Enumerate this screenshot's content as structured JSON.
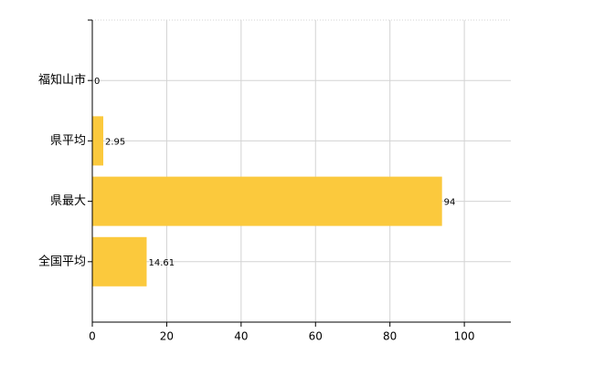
{
  "chart_data": {
    "type": "bar",
    "orientation": "horizontal",
    "categories": [
      "福知山市",
      "県平均",
      "県最大",
      "全国平均"
    ],
    "values": [
      0,
      2.95,
      94,
      14.61
    ],
    "color": "#fbc93d",
    "xlim": [
      0,
      112.5
    ],
    "xticks": [
      0,
      20,
      40,
      60,
      80,
      100
    ],
    "grid": true
  }
}
